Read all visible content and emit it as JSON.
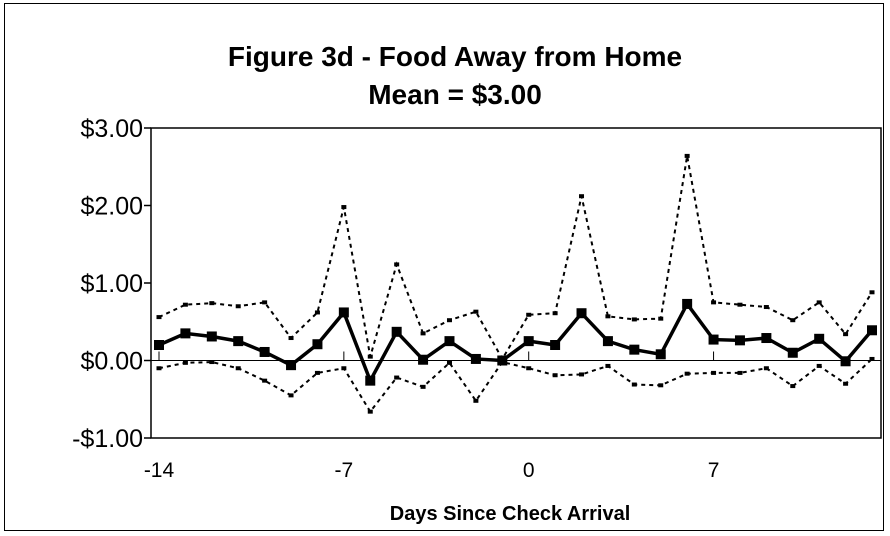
{
  "chart_data": {
    "type": "line",
    "title": "Figure 3d - Food Away from Home",
    "subtitle": "Mean = $3.00",
    "xlabel": "Days Since Check Arrival",
    "ylabel": "",
    "x": [
      -14,
      -13,
      -12,
      -11,
      -10,
      -9,
      -8,
      -7,
      -6,
      -5,
      -4,
      -3,
      -2,
      -1,
      0,
      1,
      2,
      3,
      4,
      5,
      6,
      7,
      8,
      9,
      10,
      11,
      12,
      13
    ],
    "xlim": [
      -14,
      13
    ],
    "ylim": [
      -1,
      3
    ],
    "xticks": [
      -14,
      -7,
      0,
      7
    ],
    "xtick_labels": [
      "-14",
      "-7",
      "0",
      "7"
    ],
    "yticks": [
      -1,
      0,
      1,
      2,
      3
    ],
    "ytick_labels": [
      "-$1.00",
      "$0.00",
      "$1.00",
      "$2.00",
      "$3.00"
    ],
    "grid": false,
    "legend": "none",
    "series": [
      {
        "role": "estimate",
        "style": "solid-thick-square-markers",
        "color": "#000000",
        "values": [
          0.2,
          0.35,
          0.31,
          0.25,
          0.11,
          -0.06,
          0.21,
          0.62,
          -0.26,
          0.37,
          0.01,
          0.25,
          0.02,
          0.0,
          0.25,
          0.2,
          0.61,
          0.25,
          0.14,
          0.08,
          0.73,
          0.27,
          0.26,
          0.29,
          0.1,
          0.28,
          -0.01,
          0.39
        ]
      },
      {
        "role": "upper-band",
        "style": "dotted",
        "color": "#000000",
        "values": [
          0.56,
          0.72,
          0.74,
          0.7,
          0.75,
          0.29,
          0.62,
          1.98,
          0.05,
          1.24,
          0.35,
          0.52,
          0.63,
          0.02,
          0.59,
          0.61,
          2.12,
          0.57,
          0.53,
          0.54,
          2.64,
          0.75,
          0.72,
          0.69,
          0.52,
          0.75,
          0.34,
          0.88
        ]
      },
      {
        "role": "lower-band",
        "style": "dotted",
        "color": "#000000",
        "values": [
          -0.1,
          -0.03,
          -0.02,
          -0.1,
          -0.26,
          -0.45,
          -0.16,
          -0.1,
          -0.66,
          -0.22,
          -0.34,
          -0.03,
          -0.52,
          -0.02,
          -0.1,
          -0.19,
          -0.18,
          -0.07,
          -0.31,
          -0.32,
          -0.17,
          -0.16,
          -0.16,
          -0.1,
          -0.33,
          -0.07,
          -0.3,
          0.02
        ]
      }
    ]
  }
}
